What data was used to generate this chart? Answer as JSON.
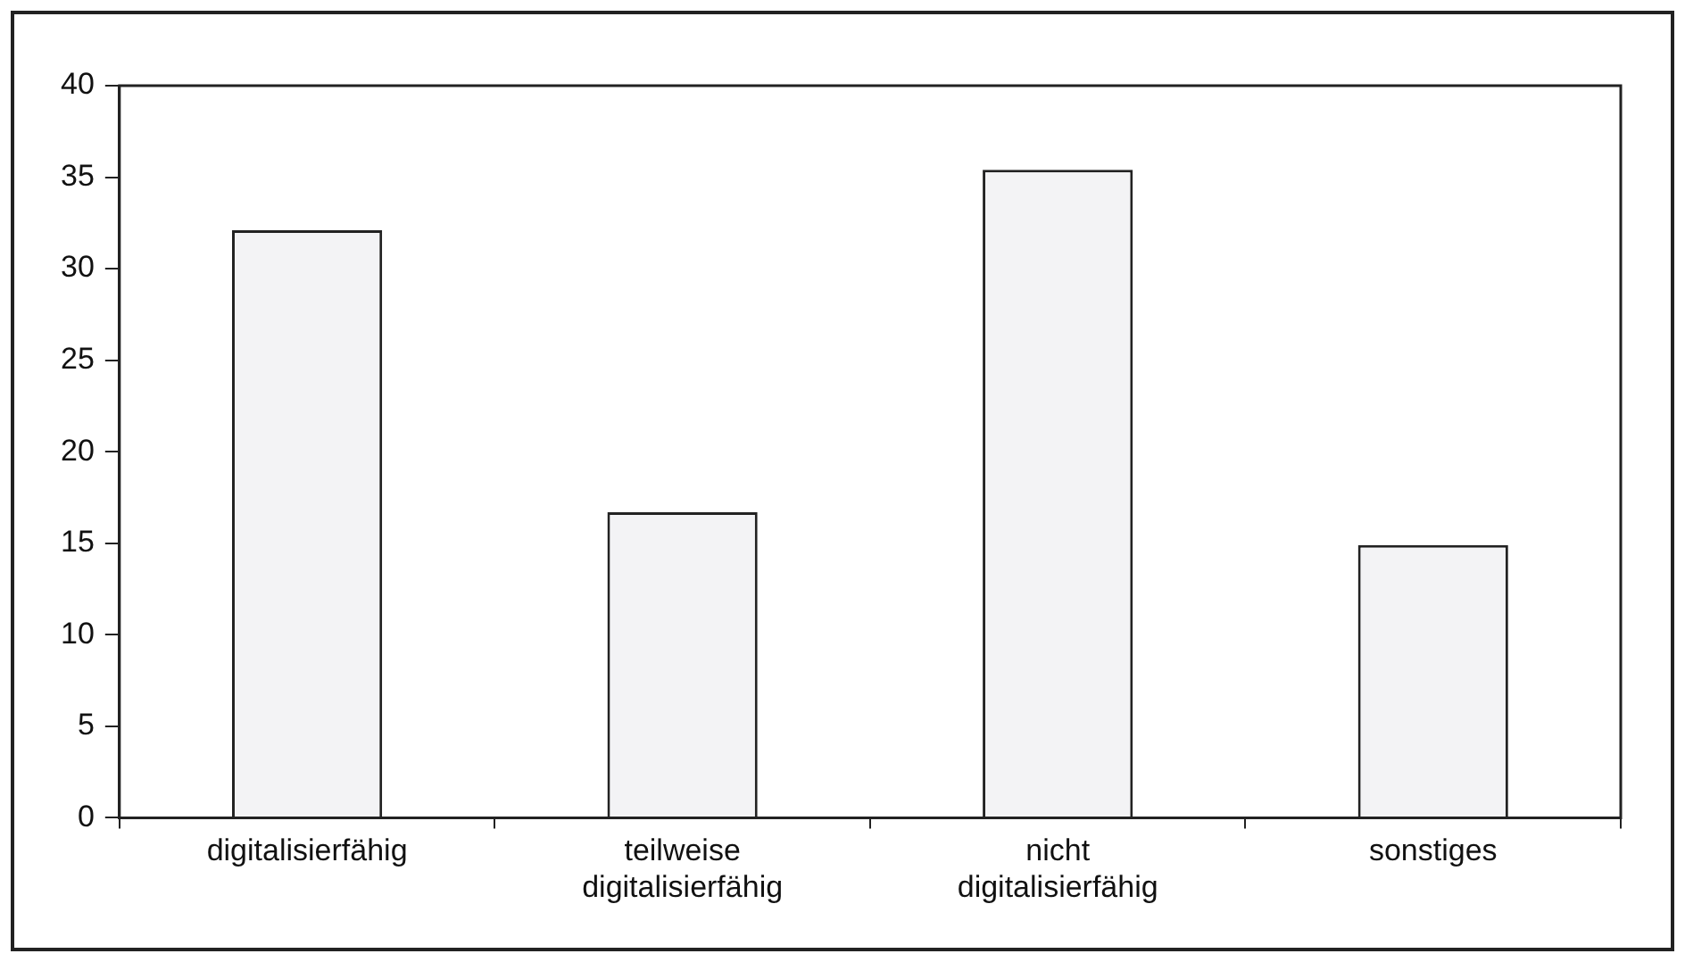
{
  "chart_data": {
    "type": "bar",
    "categories": [
      "digitalisierfähig",
      "teilweise digitalisierfähig",
      "nicht digitalisierfähig",
      "sonstiges"
    ],
    "values": [
      32.1,
      16.7,
      35.4,
      14.9
    ],
    "color": "#f3f3f5",
    "ylim": [
      0,
      40
    ],
    "yticks": [
      0,
      5,
      10,
      15,
      20,
      25,
      30,
      35,
      40
    ],
    "grid": false,
    "legend": false
  }
}
